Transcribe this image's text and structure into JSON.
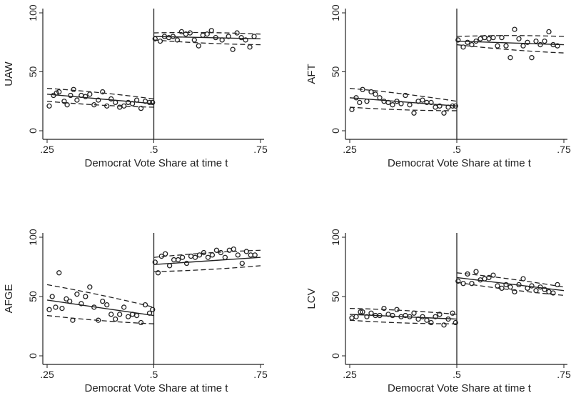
{
  "chart_data": [
    {
      "type": "scatter",
      "ylabel": "UAW",
      "xlabel": "Democrat Vote Share at time t",
      "xlim": [
        0.25,
        0.75
      ],
      "ylim": [
        0,
        100
      ],
      "x_ticks": [
        ".25",
        ".5",
        ".75"
      ],
      "y_ticks": [
        "0",
        "50",
        "100"
      ],
      "threshold": 0.5,
      "points": [
        [
          0.255,
          21
        ],
        [
          0.265,
          30
        ],
        [
          0.272,
          32
        ],
        [
          0.278,
          33
        ],
        [
          0.29,
          25
        ],
        [
          0.297,
          22
        ],
        [
          0.305,
          30
        ],
        [
          0.312,
          35
        ],
        [
          0.32,
          26
        ],
        [
          0.33,
          30
        ],
        [
          0.34,
          29
        ],
        [
          0.35,
          31
        ],
        [
          0.36,
          22
        ],
        [
          0.37,
          26
        ],
        [
          0.38,
          33
        ],
        [
          0.39,
          21
        ],
        [
          0.4,
          27
        ],
        [
          0.41,
          24
        ],
        [
          0.42,
          20
        ],
        [
          0.43,
          21
        ],
        [
          0.44,
          24
        ],
        [
          0.45,
          23
        ],
        [
          0.46,
          26
        ],
        [
          0.47,
          19
        ],
        [
          0.48,
          25
        ],
        [
          0.49,
          24
        ],
        [
          0.497,
          24
        ],
        [
          0.503,
          78
        ],
        [
          0.515,
          76
        ],
        [
          0.525,
          80
        ],
        [
          0.535,
          79
        ],
        [
          0.545,
          80
        ],
        [
          0.555,
          77
        ],
        [
          0.565,
          84
        ],
        [
          0.575,
          82
        ],
        [
          0.585,
          83
        ],
        [
          0.595,
          77
        ],
        [
          0.605,
          72
        ],
        [
          0.615,
          81
        ],
        [
          0.625,
          82
        ],
        [
          0.635,
          85
        ],
        [
          0.645,
          79
        ],
        [
          0.66,
          77
        ],
        [
          0.675,
          80
        ],
        [
          0.685,
          69
        ],
        [
          0.695,
          83
        ],
        [
          0.705,
          79
        ],
        [
          0.715,
          77
        ],
        [
          0.725,
          71
        ],
        [
          0.735,
          80
        ]
      ],
      "fit_left": {
        "x": [
          0.25,
          0.5
        ],
        "fit": [
          31,
          23
        ],
        "lower": [
          25,
          20
        ],
        "upper": [
          36,
          27
        ]
      },
      "fit_right": {
        "x": [
          0.5,
          0.75
        ],
        "fit": [
          80,
          78
        ],
        "lower": [
          77,
          73
        ],
        "upper": [
          83,
          82
        ]
      }
    },
    {
      "type": "scatter",
      "ylabel": "AFT",
      "xlabel": "Democrat Vote Share at time t",
      "xlim": [
        0.25,
        0.75
      ],
      "ylim": [
        0,
        100
      ],
      "x_ticks": [
        ".25",
        ".5",
        ".75"
      ],
      "y_ticks": [
        "0",
        "50",
        "100"
      ],
      "threshold": 0.5,
      "points": [
        [
          0.255,
          18
        ],
        [
          0.265,
          28
        ],
        [
          0.273,
          24
        ],
        [
          0.28,
          35
        ],
        [
          0.29,
          25
        ],
        [
          0.3,
          33
        ],
        [
          0.31,
          31
        ],
        [
          0.32,
          28
        ],
        [
          0.33,
          25
        ],
        [
          0.34,
          24
        ],
        [
          0.35,
          22
        ],
        [
          0.36,
          25
        ],
        [
          0.37,
          23
        ],
        [
          0.38,
          30
        ],
        [
          0.39,
          22
        ],
        [
          0.4,
          15
        ],
        [
          0.41,
          25
        ],
        [
          0.42,
          26
        ],
        [
          0.43,
          24
        ],
        [
          0.44,
          24
        ],
        [
          0.45,
          20
        ],
        [
          0.46,
          21
        ],
        [
          0.47,
          15
        ],
        [
          0.48,
          20
        ],
        [
          0.49,
          21
        ],
        [
          0.497,
          21
        ],
        [
          0.503,
          77
        ],
        [
          0.515,
          71
        ],
        [
          0.525,
          75
        ],
        [
          0.535,
          73
        ],
        [
          0.545,
          76
        ],
        [
          0.555,
          78
        ],
        [
          0.565,
          79
        ],
        [
          0.575,
          78
        ],
        [
          0.585,
          79
        ],
        [
          0.595,
          72
        ],
        [
          0.605,
          79
        ],
        [
          0.615,
          72
        ],
        [
          0.625,
          62
        ],
        [
          0.635,
          86
        ],
        [
          0.645,
          78
        ],
        [
          0.655,
          72
        ],
        [
          0.665,
          75
        ],
        [
          0.675,
          62
        ],
        [
          0.685,
          76
        ],
        [
          0.695,
          73
        ],
        [
          0.705,
          76
        ],
        [
          0.715,
          84
        ],
        [
          0.725,
          73
        ],
        [
          0.735,
          72
        ]
      ],
      "fit_left": {
        "x": [
          0.25,
          0.5
        ],
        "fit": [
          28,
          21
        ],
        "lower": [
          20,
          17
        ],
        "upper": [
          36,
          25
        ]
      },
      "fit_right": {
        "x": [
          0.5,
          0.75
        ],
        "fit": [
          76,
          73
        ],
        "lower": [
          73,
          66
        ],
        "upper": [
          80,
          80
        ]
      }
    },
    {
      "type": "scatter",
      "ylabel": "AFGE",
      "xlabel": "Democrat Vote Share at time t",
      "xlim": [
        0.25,
        0.75
      ],
      "ylim": [
        0,
        100
      ],
      "x_ticks": [
        ".25",
        ".5",
        ".75"
      ],
      "y_ticks": [
        "0",
        "50",
        "100"
      ],
      "threshold": 0.5,
      "points": [
        [
          0.255,
          39
        ],
        [
          0.262,
          50
        ],
        [
          0.27,
          41
        ],
        [
          0.278,
          70
        ],
        [
          0.285,
          40
        ],
        [
          0.295,
          48
        ],
        [
          0.303,
          46
        ],
        [
          0.31,
          30
        ],
        [
          0.32,
          52
        ],
        [
          0.33,
          44
        ],
        [
          0.34,
          50
        ],
        [
          0.35,
          58
        ],
        [
          0.36,
          41
        ],
        [
          0.37,
          30
        ],
        [
          0.38,
          46
        ],
        [
          0.39,
          43
        ],
        [
          0.4,
          35
        ],
        [
          0.41,
          31
        ],
        [
          0.42,
          35
        ],
        [
          0.43,
          41
        ],
        [
          0.44,
          33
        ],
        [
          0.45,
          35
        ],
        [
          0.46,
          34
        ],
        [
          0.47,
          28
        ],
        [
          0.48,
          43
        ],
        [
          0.49,
          36
        ],
        [
          0.497,
          39
        ],
        [
          0.503,
          79
        ],
        [
          0.51,
          70
        ],
        [
          0.518,
          84
        ],
        [
          0.527,
          86
        ],
        [
          0.537,
          76
        ],
        [
          0.547,
          81
        ],
        [
          0.557,
          81
        ],
        [
          0.567,
          83
        ],
        [
          0.577,
          78
        ],
        [
          0.587,
          84
        ],
        [
          0.597,
          83
        ],
        [
          0.607,
          85
        ],
        [
          0.617,
          87
        ],
        [
          0.627,
          83
        ],
        [
          0.637,
          85
        ],
        [
          0.647,
          89
        ],
        [
          0.657,
          87
        ],
        [
          0.667,
          83
        ],
        [
          0.677,
          89
        ],
        [
          0.687,
          90
        ],
        [
          0.697,
          85
        ],
        [
          0.707,
          78
        ],
        [
          0.717,
          88
        ],
        [
          0.727,
          85
        ],
        [
          0.737,
          85
        ]
      ],
      "fit_left": {
        "x": [
          0.25,
          0.5
        ],
        "fit": [
          47,
          34
        ],
        "lower": [
          34,
          27
        ],
        "upper": [
          60,
          41
        ]
      },
      "fit_right": {
        "x": [
          0.5,
          0.75
        ],
        "fit": [
          77,
          83
        ],
        "lower": [
          71,
          76
        ],
        "upper": [
          83,
          89
        ]
      }
    },
    {
      "type": "scatter",
      "ylabel": "LCV",
      "xlabel": "Democrat Vote Share at time t",
      "xlim": [
        0.25,
        0.75
      ],
      "ylim": [
        0,
        100
      ],
      "x_ticks": [
        ".25",
        ".5",
        ".75"
      ],
      "y_ticks": [
        "0",
        "50",
        "100"
      ],
      "threshold": 0.5,
      "points": [
        [
          0.255,
          32
        ],
        [
          0.265,
          33
        ],
        [
          0.275,
          37
        ],
        [
          0.28,
          37
        ],
        [
          0.29,
          33
        ],
        [
          0.3,
          36
        ],
        [
          0.31,
          34
        ],
        [
          0.32,
          34
        ],
        [
          0.33,
          40
        ],
        [
          0.34,
          35
        ],
        [
          0.35,
          34
        ],
        [
          0.36,
          39
        ],
        [
          0.37,
          33
        ],
        [
          0.38,
          34
        ],
        [
          0.39,
          33
        ],
        [
          0.4,
          36
        ],
        [
          0.41,
          31
        ],
        [
          0.42,
          33
        ],
        [
          0.43,
          30
        ],
        [
          0.44,
          28
        ],
        [
          0.45,
          33
        ],
        [
          0.46,
          35
        ],
        [
          0.47,
          26
        ],
        [
          0.48,
          31
        ],
        [
          0.49,
          36
        ],
        [
          0.497,
          28
        ],
        [
          0.503,
          63
        ],
        [
          0.515,
          61
        ],
        [
          0.525,
          69
        ],
        [
          0.535,
          61
        ],
        [
          0.545,
          71
        ],
        [
          0.555,
          64
        ],
        [
          0.565,
          65
        ],
        [
          0.575,
          66
        ],
        [
          0.585,
          68
        ],
        [
          0.595,
          59
        ],
        [
          0.605,
          57
        ],
        [
          0.615,
          60
        ],
        [
          0.625,
          58
        ],
        [
          0.635,
          54
        ],
        [
          0.645,
          60
        ],
        [
          0.655,
          65
        ],
        [
          0.665,
          57
        ],
        [
          0.675,
          59
        ],
        [
          0.685,
          55
        ],
        [
          0.695,
          58
        ],
        [
          0.705,
          56
        ],
        [
          0.715,
          54
        ],
        [
          0.725,
          53
        ],
        [
          0.735,
          60
        ]
      ],
      "fit_left": {
        "x": [
          0.25,
          0.5
        ],
        "fit": [
          35,
          31
        ],
        "lower": [
          30,
          27
        ],
        "upper": [
          40,
          35
        ]
      },
      "fit_right": {
        "x": [
          0.5,
          0.75
        ],
        "fit": [
          66,
          55
        ],
        "lower": [
          62,
          51
        ],
        "upper": [
          70,
          58
        ]
      }
    }
  ]
}
